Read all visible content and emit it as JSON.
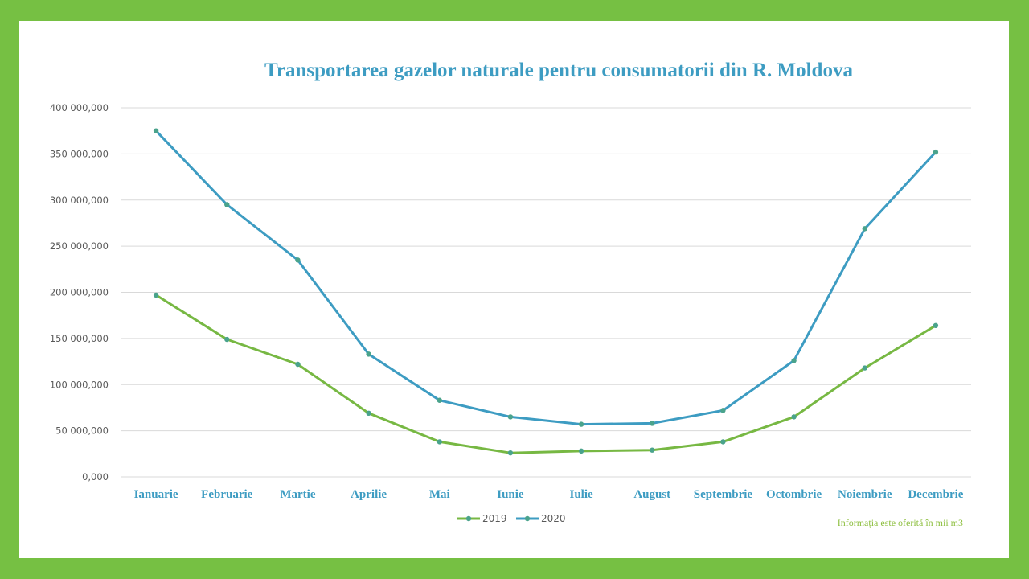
{
  "chart_data": {
    "type": "line",
    "title": "Transportarea gazelor naturale pentru consumatorii din R. Moldova",
    "xlabel": "",
    "ylabel": "",
    "categories": [
      "Ianuarie",
      "Februarie",
      "Martie",
      "Aprilie",
      "Mai",
      "Iunie",
      "Iulie",
      "August",
      "Septembrie",
      "Octombrie",
      "Noiembrie",
      "Decembrie"
    ],
    "yticks": [
      {
        "value": 0,
        "label": "0,000"
      },
      {
        "value": 50000000,
        "label": "50 000,000"
      },
      {
        "value": 100000000,
        "label": "100 000,000"
      },
      {
        "value": 150000000,
        "label": "150 000,000"
      },
      {
        "value": 200000000,
        "label": "200 000,000"
      },
      {
        "value": 250000000,
        "label": "250 000,000"
      },
      {
        "value": 300000000,
        "label": "300 000,000"
      },
      {
        "value": 350000000,
        "label": "350 000,000"
      },
      {
        "value": 400000000,
        "label": "400 000,000"
      }
    ],
    "ylim": [
      0,
      400000000
    ],
    "grid": true,
    "legend_position": "bottom",
    "series": [
      {
        "name": "2019",
        "color": "#77b843",
        "marker_color": "#4aa38c",
        "values": [
          197000000,
          149000000,
          122000000,
          69000000,
          38000000,
          26000000,
          28000000,
          29000000,
          38000000,
          65000000,
          118000000,
          164000000
        ]
      },
      {
        "name": "2020",
        "color": "#3d9cc2",
        "marker_color": "#4aa38c",
        "values": [
          375000000,
          295000000,
          235000000,
          133000000,
          83000000,
          65000000,
          57000000,
          58000000,
          72000000,
          126000000,
          269000000,
          352000000
        ]
      }
    ],
    "note": "Informația  este oferită în mii m3"
  },
  "colors": {
    "frame": "#76c043",
    "title": "#3d9cc2",
    "xtick": "#3d9cc2",
    "note": "#8dbf3f",
    "grid": "#d9d9d9"
  }
}
